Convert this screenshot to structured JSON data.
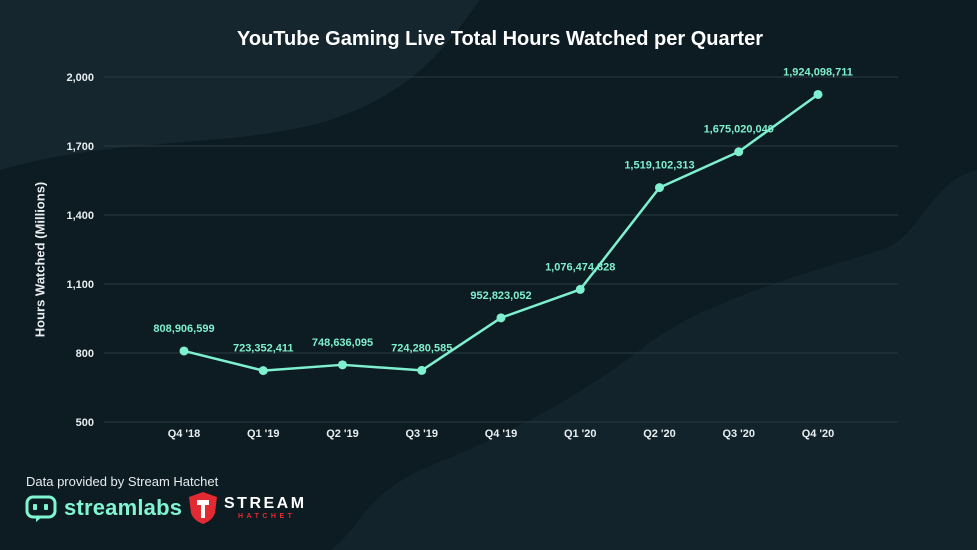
{
  "chart_data": {
    "type": "line",
    "title": "YouTube Gaming Live Total Hours Watched per Quarter",
    "xlabel": "",
    "ylabel": "Hours Watched (Millions)",
    "categories": [
      "Q4 '18",
      "Q1 '19",
      "Q2 '19",
      "Q3 '19",
      "Q4 '19",
      "Q1 '20",
      "Q2 '20",
      "Q3 '20",
      "Q4 '20"
    ],
    "values": [
      808.906599,
      723.352411,
      748.636095,
      724.280585,
      952.823052,
      1076.474828,
      1519.102313,
      1675.020049,
      1924.098711
    ],
    "data_labels": [
      "808,906,599",
      "723,352,411",
      "748,636,095",
      "724,280,585",
      "952,823,052",
      "1,076,474,828",
      "1,519,102,313",
      "1,675,020,049",
      "1,924,098,711"
    ],
    "ylim": [
      500,
      2000
    ],
    "yticks": [
      500,
      800,
      1100,
      1400,
      1700,
      2000
    ],
    "ytick_labels": [
      "500",
      "800",
      "1,100",
      "1,400",
      "1,700",
      "2,000"
    ],
    "grid": true,
    "legend": "none",
    "line_color": "#7ff0cf"
  },
  "footer": {
    "credit": "Data provided by Stream Hatchet",
    "streamlabs_logo": "streamlabs",
    "hatchet_logo_word1": "STREAM",
    "hatchet_logo_word2": "HATCHET"
  },
  "colors": {
    "background": "#0d1b22",
    "accent": "#7ff0cf",
    "hatchet_red": "#e22a33"
  }
}
